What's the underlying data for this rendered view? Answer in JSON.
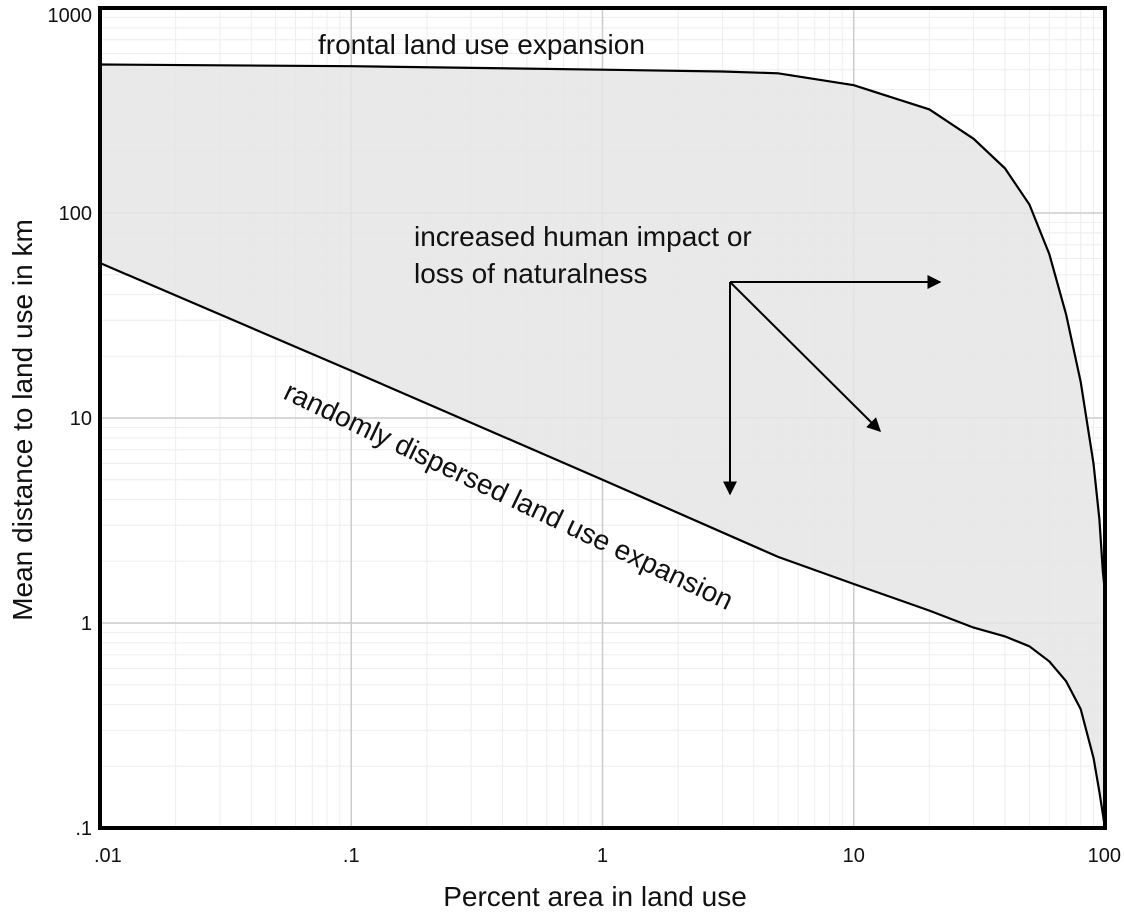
{
  "chart_data": {
    "type": "area",
    "title": "",
    "xlabel": "Percent area in land use",
    "ylabel": "Mean distance to land use in km",
    "x_scale": "log",
    "y_scale": "log",
    "xlim": [
      0.01,
      100
    ],
    "ylim": [
      0.1,
      1000
    ],
    "grid": true,
    "legend": "none",
    "x_ticks": [
      {
        "value": 0.01,
        "label": ".01"
      },
      {
        "value": 0.1,
        "label": ".1"
      },
      {
        "value": 1,
        "label": "1"
      },
      {
        "value": 10,
        "label": "10"
      },
      {
        "value": 100,
        "label": "100"
      }
    ],
    "y_ticks": [
      {
        "value": 0.1,
        "label": ".1"
      },
      {
        "value": 1,
        "label": "1"
      },
      {
        "value": 10,
        "label": "10"
      },
      {
        "value": 100,
        "label": "100"
      },
      {
        "value": 1000,
        "label": "1000"
      }
    ],
    "series": [
      {
        "x": [
          0.01,
          0.1,
          1,
          3,
          5,
          10,
          20,
          30,
          40,
          50,
          60,
          70,
          80,
          90,
          95,
          98,
          100
        ],
        "y": [
          530,
          520,
          500,
          490,
          480,
          420,
          320,
          230,
          165,
          110,
          63,
          32,
          15,
          6,
          3.2,
          1.8,
          1.4
        ]
      },
      {
        "x": [
          0.01,
          0.1,
          1,
          5,
          10,
          20,
          30,
          40,
          50,
          60,
          70,
          80,
          90,
          95,
          100
        ],
        "y": [
          57,
          17,
          5,
          2.1,
          1.55,
          1.15,
          0.95,
          0.86,
          0.77,
          0.65,
          0.52,
          0.38,
          0.22,
          0.15,
          0.1
        ]
      }
    ],
    "annotations": {
      "frontal": "frontal land use expansion",
      "impact_line1": "increased human impact or",
      "impact_line2": "loss of naturalness",
      "random": "randomly dispersed land use expansion"
    },
    "colors": {
      "fill": "#e5e5e5",
      "line": "#000000",
      "grid": "#cccccc"
    }
  }
}
